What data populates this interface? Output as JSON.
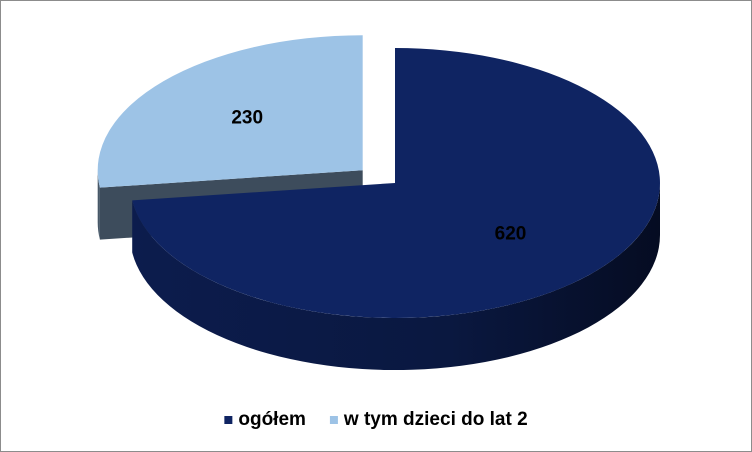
{
  "chart_data": {
    "type": "pie",
    "categories": [
      "ogółem",
      "w tym dzieci do lat 2"
    ],
    "values": [
      620,
      230
    ],
    "colors": [
      "#0f2462",
      "#9dc3e6"
    ],
    "legend": "bottom"
  }
}
